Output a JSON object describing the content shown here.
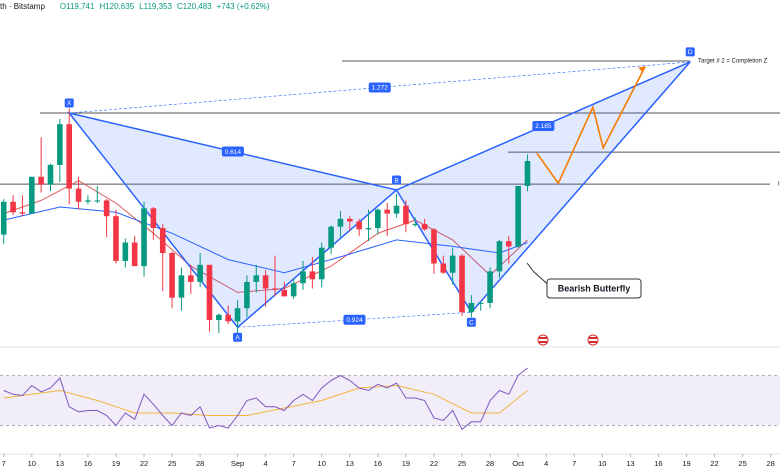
{
  "header": {
    "symbol": "th · Bitstamp",
    "open": "O119,741",
    "high": "H120,635",
    "low": "L119,353",
    "close": "C120,483",
    "change": "+743 (+0.62%)"
  },
  "chart_data": [
    {
      "type": "candlestick",
      "x": [
        0,
        1,
        2,
        3,
        4,
        5,
        6,
        7,
        8,
        9,
        10,
        11,
        12,
        13,
        14,
        15,
        16,
        17,
        18,
        19,
        20,
        21,
        22,
        23,
        24,
        25,
        26,
        27,
        28,
        29,
        30,
        31,
        32,
        33,
        34,
        35,
        36,
        37,
        38,
        39,
        40,
        41,
        42,
        43,
        44,
        45,
        46,
        47,
        48,
        49,
        50,
        51,
        52,
        53,
        54,
        55,
        56
      ],
      "open": [
        114900,
        117400,
        116600,
        116500,
        119300,
        118700,
        120200,
        123300,
        118400,
        117400,
        117500,
        117500,
        116300,
        112900,
        114300,
        112500,
        116900,
        115400,
        113500,
        110100,
        111800,
        111300,
        112600,
        108400,
        108800,
        108300,
        109300,
        111300,
        111800,
        110800,
        110700,
        110200,
        111200,
        112100,
        111500,
        113900,
        115500,
        116100,
        115900,
        115300,
        115400,
        116800,
        116500,
        117100,
        115700,
        115700,
        115300,
        112700,
        112000,
        113300,
        109000,
        109700,
        109700,
        112100,
        114400,
        114000,
        118600
      ],
      "high": [
        117600,
        117900,
        117900,
        119300,
        122300,
        120300,
        123700,
        124500,
        119300,
        117900,
        118600,
        117600,
        116800,
        114600,
        114800,
        117400,
        117000,
        115700,
        113600,
        112400,
        112600,
        113500,
        112600,
        108900,
        109500,
        109900,
        111800,
        112600,
        112200,
        113300,
        111300,
        111600,
        112900,
        113200,
        114300,
        115600,
        116700,
        116300,
        116100,
        116800,
        116900,
        117300,
        118000,
        117500,
        116200,
        116100,
        115400,
        113300,
        113900,
        113400,
        110300,
        109800,
        112400,
        114500,
        114800,
        118600,
        121000
      ],
      "low": [
        114200,
        116400,
        116300,
        116500,
        118100,
        118200,
        118900,
        117200,
        116800,
        117200,
        117300,
        114700,
        112700,
        112400,
        112600,
        111700,
        114500,
        110600,
        109300,
        109100,
        110400,
        110900,
        107500,
        107400,
        108100,
        107300,
        108600,
        110500,
        109400,
        110200,
        110200,
        110000,
        110700,
        110800,
        110900,
        113400,
        114700,
        115200,
        114800,
        114400,
        114900,
        114800,
        116200,
        115100,
        115500,
        115200,
        111900,
        111900,
        111100,
        108700,
        108600,
        109100,
        109300,
        111600,
        112700,
        113900,
        118200
      ],
      "close": [
        117400,
        116600,
        116500,
        119300,
        118700,
        120200,
        123300,
        118400,
        117400,
        117500,
        117500,
        116300,
        112900,
        114300,
        112500,
        116900,
        115400,
        113500,
        110100,
        111800,
        111300,
        112600,
        108400,
        108800,
        108300,
        109300,
        111300,
        111800,
        110800,
        110700,
        110200,
        111200,
        112100,
        111500,
        113900,
        115500,
        116100,
        115900,
        115300,
        115400,
        116800,
        116500,
        117100,
        115700,
        115700,
        115300,
        112700,
        112000,
        113300,
        109000,
        109700,
        109700,
        112100,
        114400,
        114000,
        118600,
        120500
      ],
      "up_color": "#089981",
      "down_color": "#f23645",
      "xlim": [
        -0.4,
        83
      ],
      "ylim": [
        106500,
        132750
      ],
      "xticks": [
        0,
        3,
        6,
        9,
        12,
        15,
        18,
        21,
        {
          "value": 25,
          "label": "Sep"
        },
        {
          "value": 28,
          "label": "4"
        },
        {
          "value": 31,
          "label": "7"
        },
        {
          "value": 34,
          "label": "10"
        },
        {
          "value": 37,
          "label": "13"
        },
        {
          "value": 40,
          "label": "16"
        },
        {
          "value": 43,
          "label": "19"
        },
        {
          "value": 46,
          "label": "22"
        },
        {
          "value": 49,
          "label": "25"
        },
        {
          "value": 52,
          "label": "28"
        },
        {
          "value": 55,
          "label": "Oct"
        },
        {
          "value": 58,
          "label": "4"
        },
        {
          "value": 61,
          "label": "7"
        },
        {
          "value": 64,
          "label": "10"
        },
        {
          "value": 67,
          "label": "13"
        },
        {
          "value": 70,
          "label": "16"
        },
        {
          "value": 73,
          "label": "19"
        },
        {
          "value": 76,
          "label": "22"
        },
        {
          "value": 79,
          "label": "25"
        },
        {
          "value": 82,
          "label": "28"
        }
      ],
      "xtick_labels": [
        "7",
        "10",
        "13",
        "16",
        "19",
        "22",
        "25",
        "28"
      ],
      "series": [
        {
          "color": "#e05a5a",
          "x": [
            0,
            4,
            8,
            12,
            16,
            20,
            25,
            30,
            35,
            40,
            44,
            48,
            52,
            56
          ],
          "values": [
            116500,
            117500,
            119000,
            117300,
            115000,
            112500,
            110500,
            110800,
            112500,
            115000,
            116000,
            114500,
            111800,
            114500
          ]
        },
        {
          "color": "#2962ff",
          "x": [
            0,
            6,
            12,
            18,
            24,
            30,
            36,
            42,
            48,
            53,
            56
          ],
          "values": [
            116000,
            117000,
            116600,
            115000,
            113000,
            112000,
            113200,
            114500,
            114000,
            113500,
            114300
          ]
        }
      ],
      "pattern": {
        "color": "#2962ff",
        "points": [
          {
            "label": "X",
            "x": 7,
            "value": 124150
          },
          {
            "label": "A",
            "x": 25,
            "value": 107850
          },
          {
            "label": "B",
            "x": 42,
            "value": 118290
          },
          {
            "label": "C",
            "x": 50,
            "value": 108990
          },
          {
            "label": "D",
            "x": 73.4,
            "value": 128040
          }
        ],
        "ratios": {
          "XD": "1.272",
          "XB": "0.614",
          "BD": "2.185",
          "AC": "0.924"
        }
      },
      "projection": {
        "color": "#f57c00",
        "x": [
          57,
          59.3,
          63,
          64.1,
          68.6
        ],
        "values": [
          121100,
          118800,
          124600,
          121500,
          127700
        ]
      },
      "levels": [
        {
          "value": 128110,
          "label": "Target # 2 = Completion Z"
        },
        {
          "value": 124150
        },
        {
          "value": 121180
        },
        {
          "value": 118740,
          "label": "Inv"
        }
      ],
      "annotation": "Bearish Butterfly"
    },
    {
      "type": "line",
      "x": [
        0,
        1,
        2,
        3,
        4,
        5,
        6,
        7,
        8,
        9,
        10,
        11,
        12,
        13,
        14,
        15,
        16,
        17,
        18,
        19,
        20,
        21,
        22,
        23,
        24,
        25,
        26,
        27,
        28,
        29,
        30,
        31,
        32,
        33,
        34,
        35,
        36,
        37,
        38,
        39,
        40,
        41,
        42,
        43,
        44,
        45,
        46,
        47,
        48,
        49,
        50,
        51,
        52,
        53,
        54,
        55,
        56
      ],
      "values": [
        58,
        55,
        54,
        62,
        57,
        60,
        68,
        45,
        41,
        42,
        42,
        38,
        30,
        40,
        35,
        55,
        47,
        38,
        30,
        40,
        38,
        45,
        28,
        30,
        28,
        38,
        50,
        52,
        45,
        45,
        42,
        50,
        55,
        50,
        60,
        66,
        70,
        66,
        60,
        58,
        63,
        60,
        64,
        52,
        52,
        50,
        36,
        34,
        42,
        27,
        33,
        33,
        50,
        58,
        55,
        70,
        76
      ],
      "color": "#7e57c2",
      "signal": {
        "color": "#f2b53a",
        "x": [
          0,
          6,
          10,
          14,
          18,
          22,
          26,
          30,
          34,
          38,
          42,
          46,
          50,
          53,
          56
        ],
        "values": [
          52,
          58,
          50,
          40,
          40,
          38,
          38,
          44,
          50,
          60,
          62,
          55,
          40,
          40,
          58
        ]
      },
      "bands": [
        30,
        70
      ],
      "xlim": [
        -0.4,
        83
      ],
      "ylim": [
        8,
        92
      ]
    }
  ]
}
